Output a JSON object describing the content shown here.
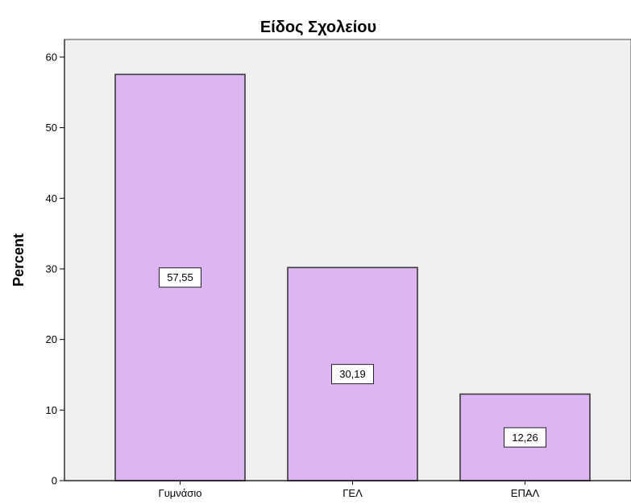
{
  "chart_data": {
    "type": "bar",
    "title": "Είδος Σχολείου",
    "xlabel": "",
    "ylabel": "Percent",
    "categories": [
      "Γυμνάσιο",
      "ΓΕΛ",
      "ΕΠΑΛ"
    ],
    "values": [
      57.55,
      30.19,
      12.26
    ],
    "value_labels": [
      "57,55",
      "30,19",
      "12,26"
    ],
    "ylim": [
      0,
      62.5
    ],
    "yticks": [
      0,
      10,
      20,
      30,
      40,
      50,
      60
    ],
    "ytick_labels": [
      "0",
      "10",
      "20",
      "30",
      "40",
      "50",
      "60"
    ],
    "grid": false,
    "colors": {
      "bar_fill": "#dcb5f2",
      "bar_stroke": "#3a3a3a",
      "plot_background": "#f0f0f0"
    }
  }
}
